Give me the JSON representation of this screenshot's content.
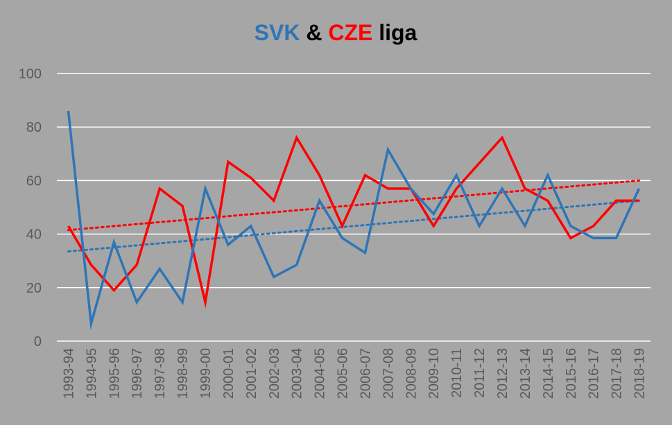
{
  "chart_data": {
    "type": "line",
    "title_parts": [
      {
        "text": "SVK",
        "color": "#2e75b6"
      },
      {
        "text": " & ",
        "color": "#000000"
      },
      {
        "text": "CZE",
        "color": "#ff0000"
      },
      {
        "text": " liga",
        "color": "#000000"
      }
    ],
    "categories": [
      "1993-94",
      "1994-95",
      "1995-96",
      "1996-97",
      "1997-98",
      "1998-99",
      "1999-00",
      "2000-01",
      "2001-02",
      "2002-03",
      "2003-04",
      "2004-05",
      "2005-06",
      "2006-07",
      "2007-08",
      "2008-09",
      "2009-10",
      "2010-11",
      "2011-12",
      "2012-13",
      "2013-14",
      "2014-15",
      "2015-16",
      "2016-17",
      "2017-18",
      "2018-19"
    ],
    "ylim": [
      0,
      100
    ],
    "yticks": [
      0,
      20,
      40,
      60,
      80,
      100
    ],
    "grid": true,
    "series": [
      {
        "color": "#2e75b6",
        "values": [
          86,
          6.5,
          37,
          14.5,
          27,
          14.5,
          57,
          36,
          43,
          24,
          28.5,
          52.5,
          38.5,
          33,
          71.5,
          57,
          47.5,
          62,
          43,
          57,
          43,
          62,
          43,
          38.5,
          38.5,
          57
        ],
        "trend": [
          33.5,
          52.5
        ]
      },
      {
        "color": "#ff0000",
        "values": [
          43,
          28.5,
          19,
          28.5,
          57,
          50.5,
          14.5,
          67,
          61,
          52.5,
          76,
          62,
          43,
          62,
          57,
          57,
          43,
          57,
          66.5,
          76,
          57,
          52.5,
          38.5,
          43,
          52.5,
          52.5
        ],
        "trend": [
          41.5,
          60
        ]
      }
    ]
  }
}
